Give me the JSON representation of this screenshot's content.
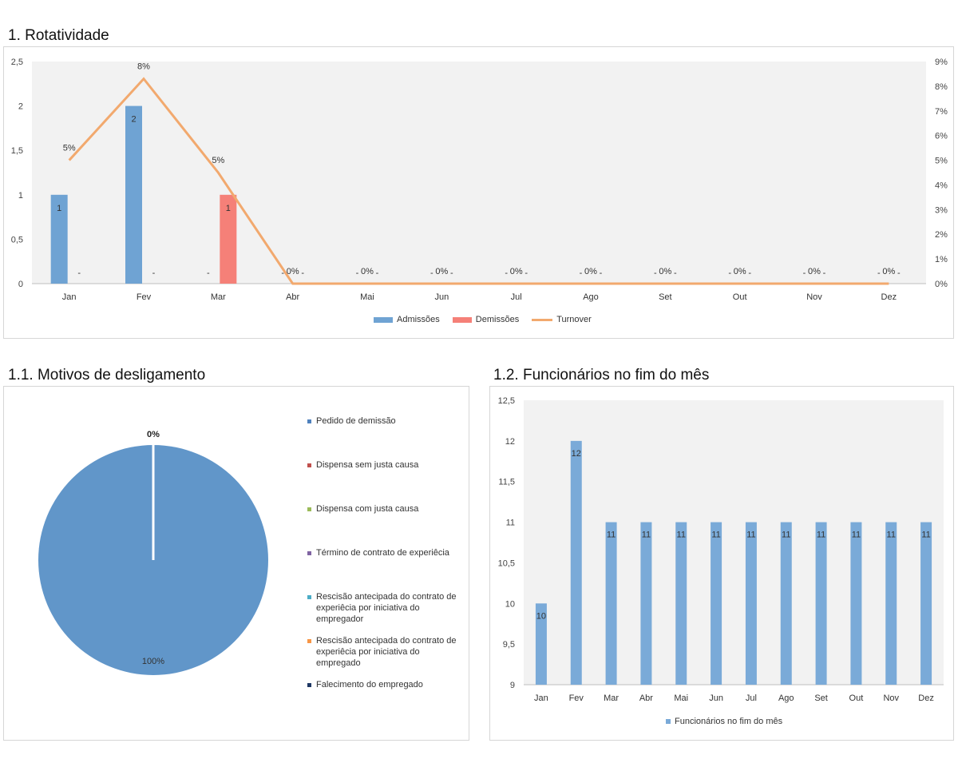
{
  "titles": {
    "rotatividade": "1. Rotatividade",
    "motivos": "1.1. Motivos de desligamento",
    "funcionarios": "1.2. Funcionários no fim do mês"
  },
  "colors": {
    "admissoes": "#6fa3d3",
    "demissoes": "#f58078",
    "turnover": "#f2a96e",
    "funcionarios": "#7aaad8",
    "pie": "#6196c9"
  },
  "chart_data": [
    {
      "type": "bar",
      "title": "",
      "categories": [
        "Jan",
        "Fev",
        "Mar",
        "Abr",
        "Mai",
        "Jun",
        "Jul",
        "Ago",
        "Set",
        "Out",
        "Nov",
        "Dez"
      ],
      "series": [
        {
          "name": "Admissões",
          "values": [
            1,
            2,
            0,
            0,
            0,
            0,
            0,
            0,
            0,
            0,
            0,
            0
          ],
          "labels": [
            "1",
            "2",
            "-",
            "-",
            "-",
            "-",
            "-",
            "-",
            "-",
            "-",
            "-",
            "-"
          ]
        },
        {
          "name": "Demissões",
          "values": [
            0,
            0,
            1,
            0,
            0,
            0,
            0,
            0,
            0,
            0,
            0,
            0
          ],
          "labels": [
            "-",
            "-",
            "1",
            "-",
            "-",
            "-",
            "-",
            "-",
            "-",
            "-",
            "-",
            "-"
          ]
        },
        {
          "name": "Turnover",
          "type": "line",
          "axis": "secondary",
          "values": [
            5,
            8.3,
            4.5,
            0,
            0,
            0,
            0,
            0,
            0,
            0,
            0,
            0
          ],
          "labels": [
            "5%",
            "8%",
            "5%",
            "0%",
            "0%",
            "0%",
            "0%",
            "0%",
            "0%",
            "0%",
            "0%",
            "0%"
          ]
        }
      ],
      "ylim": [
        0,
        2.5
      ],
      "yticks": [
        "0",
        "0,5",
        "1",
        "1,5",
        "2",
        "2,5"
      ],
      "y2lim": [
        0,
        9
      ],
      "y2ticks": [
        "0%",
        "1%",
        "2%",
        "3%",
        "4%",
        "5%",
        "6%",
        "7%",
        "8%",
        "9%"
      ],
      "legend": "bottom",
      "grid": false
    },
    {
      "type": "pie",
      "title": "",
      "slices": [
        {
          "name": "Pedido de demissão",
          "value": 100,
          "color": "#4f81bd"
        },
        {
          "name": "Dispensa sem justa causa",
          "value": 0,
          "color": "#c0504d"
        },
        {
          "name": "Dispensa com justa causa",
          "value": 0,
          "color": "#9bbb59"
        },
        {
          "name": "Término de contrato de experiêcia",
          "value": 0,
          "color": "#8064a2"
        },
        {
          "name": "Rescisão antecipada do contrato de experiêcia por iniciativa do empregador",
          "value": 0,
          "color": "#4bacc6"
        },
        {
          "name": "Rescisão antecipada do contrato de experiêcia por iniciativa do empregado",
          "value": 0,
          "color": "#f79646"
        },
        {
          "name": "Falecimento do empregado",
          "value": 0,
          "color": "#1f3864"
        }
      ],
      "data_labels": {
        "main": "100%",
        "zero": "0%"
      },
      "legend": "right"
    },
    {
      "type": "bar",
      "title": "",
      "categories": [
        "Jan",
        "Fev",
        "Mar",
        "Abr",
        "Mai",
        "Jun",
        "Jul",
        "Ago",
        "Set",
        "Out",
        "Nov",
        "Dez"
      ],
      "series": [
        {
          "name": "Funcionários no fim do mês",
          "values": [
            10,
            12,
            11,
            11,
            11,
            11,
            11,
            11,
            11,
            11,
            11,
            11
          ]
        }
      ],
      "ylim": [
        9,
        12.5
      ],
      "yticks": [
        "9",
        "9,5",
        "10",
        "10,5",
        "11",
        "11,5",
        "12",
        "12,5"
      ],
      "legend": "bottom",
      "grid": false
    }
  ]
}
